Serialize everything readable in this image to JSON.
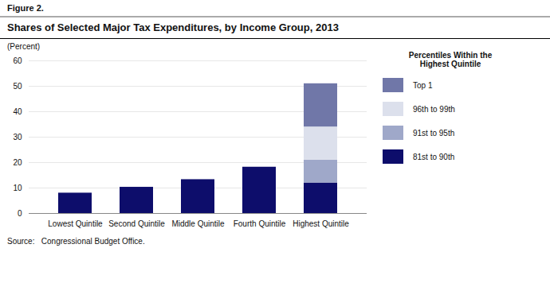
{
  "chart_data": {
    "type": "bar",
    "stacked": true,
    "title": "Shares of Selected Major Tax Expenditures, by Income Group, 2013",
    "annotations": [
      "Figure 2.",
      "Source:   Congressional Budget Office."
    ],
    "ylabel": "(Percent)",
    "legend_title": "Percentiles Within the\nHighest Quintile",
    "categories": [
      "Lowest Quintile",
      "Second Quintile",
      "Middle Quintile",
      "Fourth Quintile",
      "Highest Quintile"
    ],
    "series": [
      {
        "name": "81st to 90th",
        "color": "#0d0d6b",
        "values": [
          8.0,
          10.3,
          13.3,
          18.2,
          12.0
        ]
      },
      {
        "name": "91st to 95th",
        "color": "#9fa8c9",
        "values": [
          0,
          0,
          0,
          0,
          9.0
        ]
      },
      {
        "name": "96th to 99th",
        "color": "#dce0ec",
        "values": [
          0,
          0,
          0,
          0,
          13.0
        ]
      },
      {
        "name": "Top 1",
        "color": "#7077a8",
        "values": [
          0,
          0,
          0,
          0,
          17.0
        ]
      }
    ],
    "ylim": [
      0,
      60
    ],
    "yticks": [
      0,
      10,
      20,
      30,
      40,
      50,
      60
    ],
    "grid": true,
    "legend": "right"
  }
}
